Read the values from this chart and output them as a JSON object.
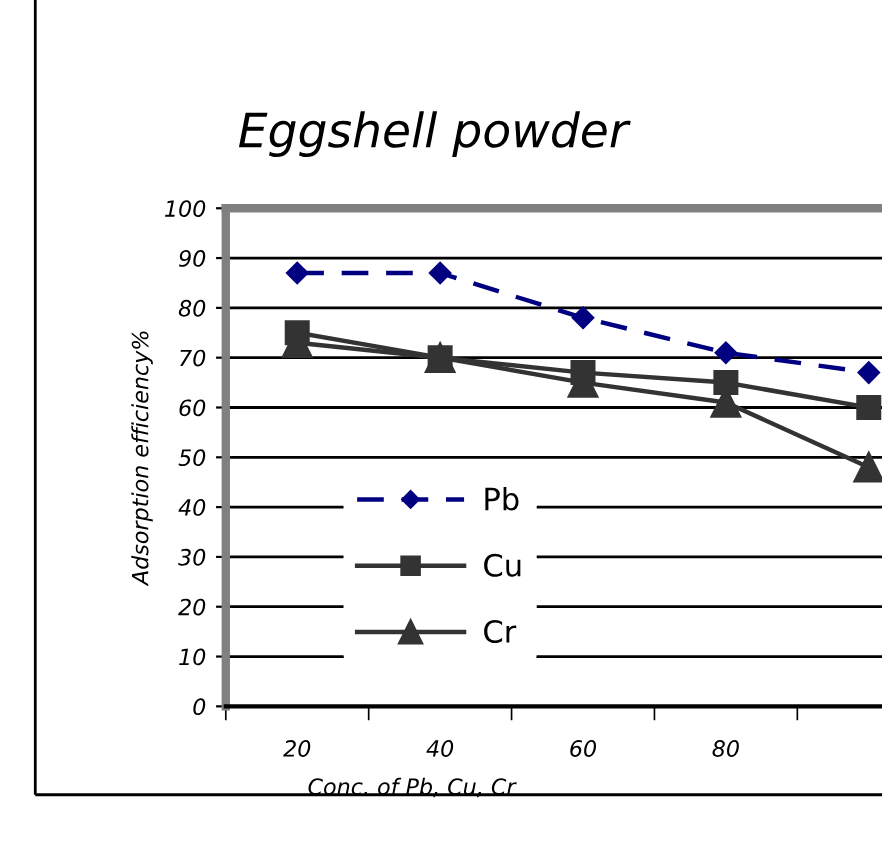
{
  "chart_data": {
    "type": "line",
    "title": "Eggshell powder",
    "xlabel": "Conc. of Pb, Cu, Cr",
    "ylabel": "Adsorption efficiency%",
    "categories": [
      "20",
      "40",
      "60",
      "80",
      null
    ],
    "series": [
      {
        "name": "Pb",
        "color": "#000080",
        "line_style": "dashed",
        "marker": "diamond",
        "values": [
          87,
          87,
          78,
          71,
          67
        ]
      },
      {
        "name": "Cu",
        "color": "#333333",
        "line_style": "solid",
        "marker": "square",
        "values": [
          75,
          70,
          67,
          65,
          60
        ]
      },
      {
        "name": "Cr",
        "color": "#333333",
        "line_style": "solid",
        "marker": "triangle",
        "values": [
          73,
          70,
          65,
          61,
          48
        ]
      }
    ],
    "ylim": [
      0,
      100
    ],
    "yticks": [
      0,
      10,
      20,
      30,
      40,
      50,
      60,
      70,
      80,
      90,
      100
    ],
    "grid": "y",
    "legend": "bottom"
  }
}
